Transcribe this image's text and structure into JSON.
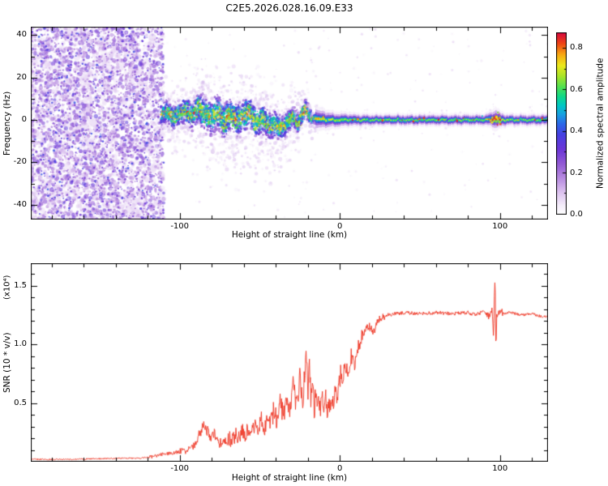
{
  "chart_data": [
    {
      "type": "heatmap",
      "title": "C2E5.2026.028.16.09.E33",
      "xlabel": "Height of straight line (km)",
      "ylabel": "Frequency (Hz)",
      "xlim": [
        -193,
        130
      ],
      "ylim": [
        -47,
        44
      ],
      "xticks": {
        "major": [
          -100,
          0,
          100
        ],
        "labels": [
          "-100",
          "0",
          "100"
        ],
        "minor_step": 20
      },
      "yticks": {
        "major": [
          40,
          20,
          0,
          -20,
          -40
        ],
        "labels": [
          "40",
          "20",
          "0",
          "-20",
          "-40"
        ],
        "minor_step": 10
      },
      "grid": false,
      "colorbar": {
        "label": "Normalized spectral amplitude",
        "range": [
          0,
          0.875
        ],
        "ticks": [
          0,
          0.2,
          0.4,
          0.6,
          0.8
        ],
        "tick_labels": [
          "0.0",
          "0.2",
          "0.4",
          "0.6",
          "0.8"
        ],
        "minor_ticks": [
          0.1,
          0.3,
          0.5,
          0.7
        ]
      },
      "colormap_stops": [
        [
          0.0,
          "#ffffff"
        ],
        [
          0.05,
          "#f4ecfa"
        ],
        [
          0.12,
          "#ddc3f0"
        ],
        [
          0.2,
          "#b78ae0"
        ],
        [
          0.28,
          "#9159d4"
        ],
        [
          0.36,
          "#6b36d8"
        ],
        [
          0.44,
          "#4640e2"
        ],
        [
          0.5,
          "#2b6ae8"
        ],
        [
          0.55,
          "#18a0e2"
        ],
        [
          0.6,
          "#00c8c4"
        ],
        [
          0.65,
          "#12d988"
        ],
        [
          0.7,
          "#4fe052"
        ],
        [
          0.76,
          "#a8e428"
        ],
        [
          0.82,
          "#ece81c"
        ],
        [
          0.88,
          "#f8a812"
        ],
        [
          0.94,
          "#ee4414"
        ],
        [
          1.0,
          "#d8083f"
        ]
      ],
      "noise_region": {
        "x0": -193,
        "x1": -110,
        "v_max": 0.4
      },
      "carrier": {
        "lock_start_km": -15,
        "x": [
          -112,
          -108,
          -104,
          -100,
          -96,
          -92,
          -88,
          -84,
          -80,
          -76,
          -72,
          -68,
          -64,
          -60,
          -56,
          -52,
          -48,
          -44,
          -40,
          -36,
          -32,
          -29,
          -26,
          -23,
          -21,
          -19,
          -17,
          -15,
          -13,
          -11,
          -8,
          -4,
          0,
          10,
          20,
          40,
          60,
          80,
          90,
          94,
          97,
          100,
          105,
          115,
          130
        ],
        "freq_hz": [
          2,
          4,
          1,
          3,
          5,
          2,
          6,
          3,
          1,
          4,
          -1,
          3,
          0,
          2,
          4,
          -2,
          1,
          -3,
          -2,
          -4,
          -1,
          2,
          -2,
          3,
          6,
          2,
          0,
          1,
          0,
          0.5,
          0,
          0,
          0,
          0,
          0,
          0,
          0,
          0,
          0,
          0.3,
          0.5,
          0,
          0,
          0,
          0
        ],
        "halfwidth_hz": [
          5,
          5.5,
          6,
          6,
          6.5,
          7,
          7.5,
          8,
          8,
          8,
          8,
          8,
          8,
          8,
          7.5,
          7.5,
          7,
          7,
          6.5,
          6,
          5.5,
          5,
          4.5,
          4,
          3.5,
          3,
          2.6,
          2.3,
          2.1,
          2,
          1.8,
          1.6,
          1.5,
          1.3,
          1.2,
          1.2,
          1.2,
          1.2,
          1.2,
          1.6,
          2.2,
          1.6,
          1.2,
          1.2,
          1.2
        ],
        "peak_amp": [
          0.85,
          0.9,
          0.88,
          0.92,
          0.9,
          0.95,
          0.92,
          0.95,
          0.93,
          0.95,
          0.92,
          0.95,
          0.93,
          0.95,
          0.92,
          0.9,
          0.92,
          0.9,
          0.88,
          0.9,
          0.88,
          0.9,
          0.95,
          1.0,
          1.0,
          0.9,
          0.85,
          0.82,
          0.8,
          0.8,
          0.78,
          0.76,
          0.75,
          0.74,
          0.72,
          0.72,
          0.72,
          0.72,
          0.74,
          0.95,
          1.0,
          0.8,
          0.72,
          0.72,
          0.72
        ]
      },
      "events": [
        {
          "x0": 94,
          "x1": 100.5,
          "amp_min": 0.72,
          "amp_max": 1.0
        }
      ]
    },
    {
      "type": "line",
      "series_name": "SNR",
      "xlabel": "Height of straight line (km)",
      "ylabel": "SNR (10 * v/v)",
      "scale_label": "(x10⁴)",
      "color": "#ee3524",
      "xlim": [
        -193,
        130
      ],
      "ylim": [
        0,
        1.69
      ],
      "xticks": {
        "major": [
          -100,
          0,
          100
        ],
        "labels": [
          "-100",
          "0",
          "100"
        ],
        "minor_step": 20
      },
      "yticks": {
        "major": [
          0.5,
          1.0,
          1.5
        ],
        "labels": [
          "0.5",
          "1.0",
          "1.5"
        ],
        "minor_step": 0.1
      },
      "noise_segments": [
        {
          "x0": -193,
          "x1": -120,
          "amp": 0.006
        },
        {
          "x0": -120,
          "x1": -100,
          "amp": 0.015
        },
        {
          "x0": -100,
          "x1": -88,
          "amp": 0.03
        },
        {
          "x0": -88,
          "x1": -70,
          "amp": 0.05
        },
        {
          "x0": -70,
          "x1": -45,
          "amp": 0.07
        },
        {
          "x0": -45,
          "x1": -14,
          "amp": 0.1
        },
        {
          "x0": -14,
          "x1": 2,
          "amp": 0.09
        },
        {
          "x0": 2,
          "x1": 14,
          "amp": 0.07
        },
        {
          "x0": 14,
          "x1": 28,
          "amp": 0.035
        },
        {
          "x0": 28,
          "x1": 92,
          "amp": 0.015
        },
        {
          "x0": 92,
          "x1": 102,
          "amp": 0.03
        },
        {
          "x0": 102,
          "x1": 130,
          "amp": 0.012
        }
      ],
      "x": [
        -193,
        -170,
        -150,
        -135,
        -125,
        -118,
        -112,
        -107,
        -102,
        -98,
        -95,
        -92,
        -89,
        -87,
        -85,
        -83,
        -81,
        -79,
        -77,
        -75,
        -73,
        -71,
        -69,
        -67,
        -65,
        -63,
        -61,
        -59,
        -57,
        -55,
        -53,
        -51,
        -49,
        -47,
        -45,
        -43,
        -41,
        -39,
        -37,
        -35,
        -33,
        -31,
        -29,
        -27,
        -25,
        -23,
        -21,
        -20,
        -19,
        -18,
        -17,
        -16,
        -15,
        -14,
        -13,
        -12,
        -11,
        -10,
        -9,
        -8,
        -7,
        -6,
        -5,
        -4,
        -3,
        -2,
        -1,
        0,
        1,
        2,
        3,
        5,
        7,
        9,
        11,
        13,
        15,
        18,
        21,
        24,
        27,
        30,
        35,
        40,
        50,
        60,
        70,
        80,
        85,
        90,
        93,
        95,
        96,
        96.5,
        97,
        97.5,
        98,
        100,
        103,
        106,
        110,
        115,
        120,
        125,
        130
      ],
      "y": [
        0.02,
        0.02,
        0.025,
        0.03,
        0.03,
        0.04,
        0.06,
        0.07,
        0.08,
        0.09,
        0.1,
        0.12,
        0.18,
        0.26,
        0.32,
        0.27,
        0.2,
        0.26,
        0.19,
        0.15,
        0.2,
        0.16,
        0.2,
        0.17,
        0.23,
        0.19,
        0.26,
        0.21,
        0.29,
        0.24,
        0.32,
        0.26,
        0.36,
        0.28,
        0.4,
        0.31,
        0.45,
        0.34,
        0.52,
        0.38,
        0.58,
        0.42,
        0.65,
        0.48,
        0.72,
        0.52,
        0.95,
        0.6,
        0.78,
        0.52,
        0.66,
        0.44,
        0.58,
        0.48,
        0.56,
        0.44,
        0.52,
        0.46,
        0.55,
        0.42,
        0.52,
        0.46,
        0.56,
        0.5,
        0.6,
        0.52,
        0.64,
        0.7,
        0.78,
        0.72,
        0.84,
        0.76,
        0.9,
        0.82,
        0.98,
        1.04,
        1.1,
        1.16,
        1.1,
        1.2,
        1.23,
        1.25,
        1.26,
        1.27,
        1.26,
        1.27,
        1.26,
        1.27,
        1.25,
        1.28,
        1.24,
        1.3,
        1.05,
        1.42,
        1.55,
        0.88,
        1.25,
        1.28,
        1.26,
        1.27,
        1.26,
        1.25,
        1.26,
        1.24,
        1.23
      ]
    }
  ]
}
